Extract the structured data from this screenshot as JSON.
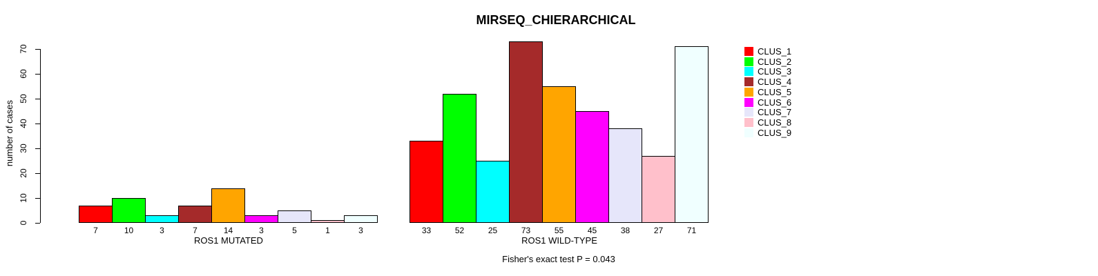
{
  "chart_data": {
    "type": "bar",
    "title": "MIRSEQ_CHIERARCHICAL",
    "ylabel": "number of cases",
    "ylim": [
      0,
      70
    ],
    "yticks": [
      0,
      10,
      20,
      30,
      40,
      50,
      60,
      70
    ],
    "grid": false,
    "legend_position": "right",
    "categories": [
      "CLUS_1",
      "CLUS_2",
      "CLUS_3",
      "CLUS_4",
      "CLUS_5",
      "CLUS_6",
      "CLUS_7",
      "CLUS_8",
      "CLUS_9"
    ],
    "colors": [
      "#FF0000",
      "#00FF00",
      "#00FFFF",
      "#A52A2A",
      "#FFA500",
      "#FF00FF",
      "#E6E6FA",
      "#FFC0CB",
      "#F0FFFF"
    ],
    "groups": [
      {
        "label": "ROS1 MUTATED",
        "values": [
          7,
          10,
          3,
          7,
          14,
          3,
          5,
          1,
          3
        ]
      },
      {
        "label": "ROS1 WILD-TYPE",
        "values": [
          33,
          52,
          25,
          73,
          55,
          45,
          38,
          27,
          71
        ]
      }
    ],
    "footnote": "Fisher's exact test P = 0.043"
  }
}
